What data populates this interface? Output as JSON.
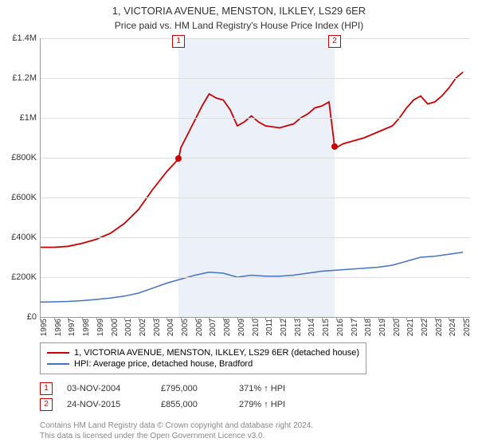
{
  "title": "1, VICTORIA AVENUE, MENSTON, ILKLEY, LS29 6ER",
  "subtitle": "Price paid vs. HM Land Registry's House Price Index (HPI)",
  "chart": {
    "type": "line",
    "background_color": "#ffffff",
    "grid_color": "#dddddd",
    "axis_color": "#999999",
    "x_years": [
      1995,
      1996,
      1997,
      1998,
      1999,
      2000,
      2001,
      2002,
      2003,
      2004,
      2005,
      2006,
      2007,
      2008,
      2009,
      2010,
      2011,
      2012,
      2013,
      2014,
      2015,
      2016,
      2017,
      2018,
      2019,
      2020,
      2021,
      2022,
      2023,
      2024,
      2025
    ],
    "xlim": [
      1995,
      2025.5
    ],
    "ylim": [
      0,
      1400000
    ],
    "ytick_step": 200000,
    "y_labels": [
      "£0",
      "£200K",
      "£400K",
      "£600K",
      "£800K",
      "£1M",
      "£1.2M",
      "£1.4M"
    ],
    "shaded_region": {
      "x_start": 2004.84,
      "x_end": 2015.9,
      "color": "rgba(180,200,230,0.25)"
    },
    "series": [
      {
        "name": "property",
        "color": "#cc0000",
        "line_width": 1.8,
        "points": [
          [
            1995.0,
            350000
          ],
          [
            1996.0,
            350000
          ],
          [
            1997.0,
            355000
          ],
          [
            1998.0,
            370000
          ],
          [
            1999.0,
            390000
          ],
          [
            2000.0,
            420000
          ],
          [
            2001.0,
            470000
          ],
          [
            2002.0,
            540000
          ],
          [
            2003.0,
            640000
          ],
          [
            2004.0,
            730000
          ],
          [
            2004.84,
            795000
          ],
          [
            2005.0,
            850000
          ],
          [
            2005.5,
            920000
          ],
          [
            2006.0,
            990000
          ],
          [
            2006.5,
            1060000
          ],
          [
            2007.0,
            1120000
          ],
          [
            2007.5,
            1100000
          ],
          [
            2008.0,
            1090000
          ],
          [
            2008.5,
            1040000
          ],
          [
            2009.0,
            960000
          ],
          [
            2009.5,
            980000
          ],
          [
            2010.0,
            1010000
          ],
          [
            2010.5,
            980000
          ],
          [
            2011.0,
            960000
          ],
          [
            2012.0,
            950000
          ],
          [
            2013.0,
            970000
          ],
          [
            2013.5,
            1000000
          ],
          [
            2014.0,
            1020000
          ],
          [
            2014.5,
            1050000
          ],
          [
            2015.0,
            1060000
          ],
          [
            2015.5,
            1080000
          ],
          [
            2015.9,
            855000
          ],
          [
            2016.0,
            850000
          ],
          [
            2016.5,
            870000
          ],
          [
            2017.0,
            880000
          ],
          [
            2018.0,
            900000
          ],
          [
            2019.0,
            930000
          ],
          [
            2020.0,
            960000
          ],
          [
            2020.5,
            1000000
          ],
          [
            2021.0,
            1050000
          ],
          [
            2021.5,
            1090000
          ],
          [
            2022.0,
            1110000
          ],
          [
            2022.5,
            1070000
          ],
          [
            2023.0,
            1080000
          ],
          [
            2023.5,
            1110000
          ],
          [
            2024.0,
            1150000
          ],
          [
            2024.5,
            1200000
          ],
          [
            2025.0,
            1230000
          ]
        ]
      },
      {
        "name": "hpi",
        "color": "#4472c4",
        "line_width": 1.5,
        "points": [
          [
            1995.0,
            75000
          ],
          [
            1996.0,
            76000
          ],
          [
            1997.0,
            78000
          ],
          [
            1998.0,
            82000
          ],
          [
            1999.0,
            88000
          ],
          [
            2000.0,
            95000
          ],
          [
            2001.0,
            105000
          ],
          [
            2002.0,
            120000
          ],
          [
            2003.0,
            145000
          ],
          [
            2004.0,
            170000
          ],
          [
            2005.0,
            190000
          ],
          [
            2006.0,
            210000
          ],
          [
            2007.0,
            225000
          ],
          [
            2008.0,
            220000
          ],
          [
            2009.0,
            200000
          ],
          [
            2010.0,
            210000
          ],
          [
            2011.0,
            205000
          ],
          [
            2012.0,
            205000
          ],
          [
            2013.0,
            210000
          ],
          [
            2014.0,
            220000
          ],
          [
            2015.0,
            230000
          ],
          [
            2016.0,
            235000
          ],
          [
            2017.0,
            240000
          ],
          [
            2018.0,
            245000
          ],
          [
            2019.0,
            250000
          ],
          [
            2020.0,
            260000
          ],
          [
            2021.0,
            280000
          ],
          [
            2022.0,
            300000
          ],
          [
            2023.0,
            305000
          ],
          [
            2024.0,
            315000
          ],
          [
            2025.0,
            325000
          ]
        ]
      }
    ],
    "sale_markers": [
      {
        "n": "1",
        "x": 2004.84,
        "y": 795000,
        "color": "#cc0000"
      },
      {
        "n": "2",
        "x": 2015.9,
        "y": 855000,
        "color": "#cc0000"
      }
    ],
    "label_fontsize": 11
  },
  "legend": {
    "items": [
      {
        "color": "#cc0000",
        "label": "1, VICTORIA AVENUE, MENSTON, ILKLEY, LS29 6ER (detached house)"
      },
      {
        "color": "#4472c4",
        "label": "HPI: Average price, detached house, Bradford"
      }
    ]
  },
  "sales": [
    {
      "n": "1",
      "date": "03-NOV-2004",
      "price": "£795,000",
      "hpi": "371% ↑ HPI"
    },
    {
      "n": "2",
      "date": "24-NOV-2015",
      "price": "£855,000",
      "hpi": "279% ↑ HPI"
    }
  ],
  "footer": {
    "line1": "Contains HM Land Registry data © Crown copyright and database right 2024.",
    "line2": "This data is licensed under the Open Government Licence v3.0."
  }
}
